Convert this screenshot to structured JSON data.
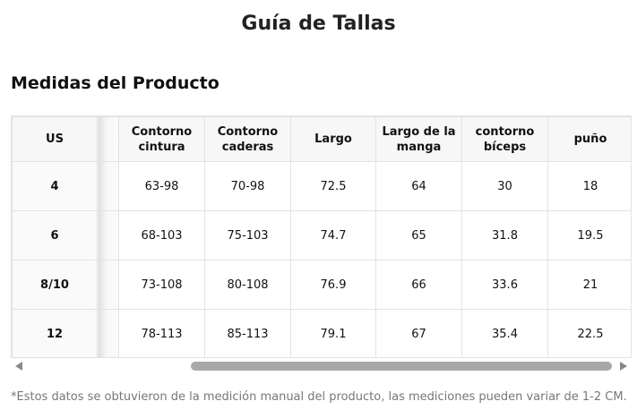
{
  "header": {
    "title": "Guía de Tallas",
    "subtitle": "Medidas del Producto"
  },
  "table": {
    "headers": [
      "US",
      "Contorno cintura",
      "Contorno caderas",
      "Largo",
      "Largo de la manga",
      "contorno bíceps",
      "puño"
    ],
    "rows": [
      [
        "4",
        "63-98",
        "70-98",
        "72.5",
        "64",
        "30",
        "18"
      ],
      [
        "6",
        "68-103",
        "75-103",
        "74.7",
        "65",
        "31.8",
        "19.5"
      ],
      [
        "8/10",
        "73-108",
        "80-108",
        "76.9",
        "66",
        "33.6",
        "21"
      ],
      [
        "12",
        "78-113",
        "85-113",
        "79.1",
        "67",
        "35.4",
        "22.5"
      ]
    ]
  },
  "footnote": "*Estos datos se obtuvieron de la medición manual del producto, las mediciones pueden variar de 1-2 CM."
}
